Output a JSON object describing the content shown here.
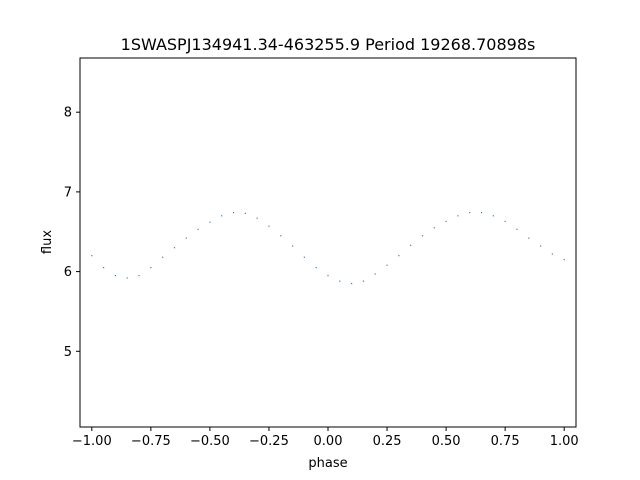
{
  "chart_data": {
    "type": "scatter",
    "title": "1SWASPJ134941.34-463255.9 Period 19268.70898s",
    "xlabel": "phase",
    "ylabel": "flux",
    "xlim": [
      -1.05,
      1.05
    ],
    "ylim": [
      4.05,
      8.68
    ],
    "x_ticks": [
      -1.0,
      -0.75,
      -0.5,
      -0.25,
      0.0,
      0.25,
      0.5,
      0.75,
      1.0
    ],
    "x_tick_labels": [
      "−1.00",
      "−0.75",
      "−0.50",
      "−0.25",
      "0.00",
      "0.25",
      "0.50",
      "0.75",
      "1.00"
    ],
    "y_ticks": [
      5,
      6,
      7,
      8
    ],
    "y_tick_labels": [
      "5",
      "6",
      "7",
      "8"
    ],
    "grid": false,
    "marker_color": "#1f77b4",
    "series": [
      {
        "x": [
          -1.0,
          -0.95,
          -0.9,
          -0.85,
          -0.8,
          -0.75,
          -0.7,
          -0.65,
          -0.6,
          -0.55,
          -0.5,
          -0.45,
          -0.4,
          -0.35,
          -0.3,
          -0.25,
          -0.2,
          -0.15,
          -0.1,
          -0.05,
          0.0,
          0.05,
          0.1,
          0.15,
          0.2,
          0.25,
          0.3,
          0.35,
          0.4,
          0.45,
          0.5,
          0.55,
          0.6,
          0.65,
          0.7,
          0.75,
          0.8,
          0.85,
          0.9,
          0.95,
          1.0
        ],
        "y": [
          6.2,
          6.05,
          5.95,
          5.92,
          5.95,
          6.05,
          6.18,
          6.3,
          6.42,
          6.53,
          6.62,
          6.7,
          6.74,
          6.73,
          6.67,
          6.57,
          6.45,
          6.32,
          6.18,
          6.05,
          5.95,
          5.88,
          5.85,
          5.88,
          5.97,
          6.08,
          6.2,
          6.33,
          6.45,
          6.55,
          6.63,
          6.7,
          6.74,
          6.74,
          6.7,
          6.63,
          6.53,
          6.42,
          6.32,
          6.22,
          6.15
        ]
      }
    ]
  }
}
